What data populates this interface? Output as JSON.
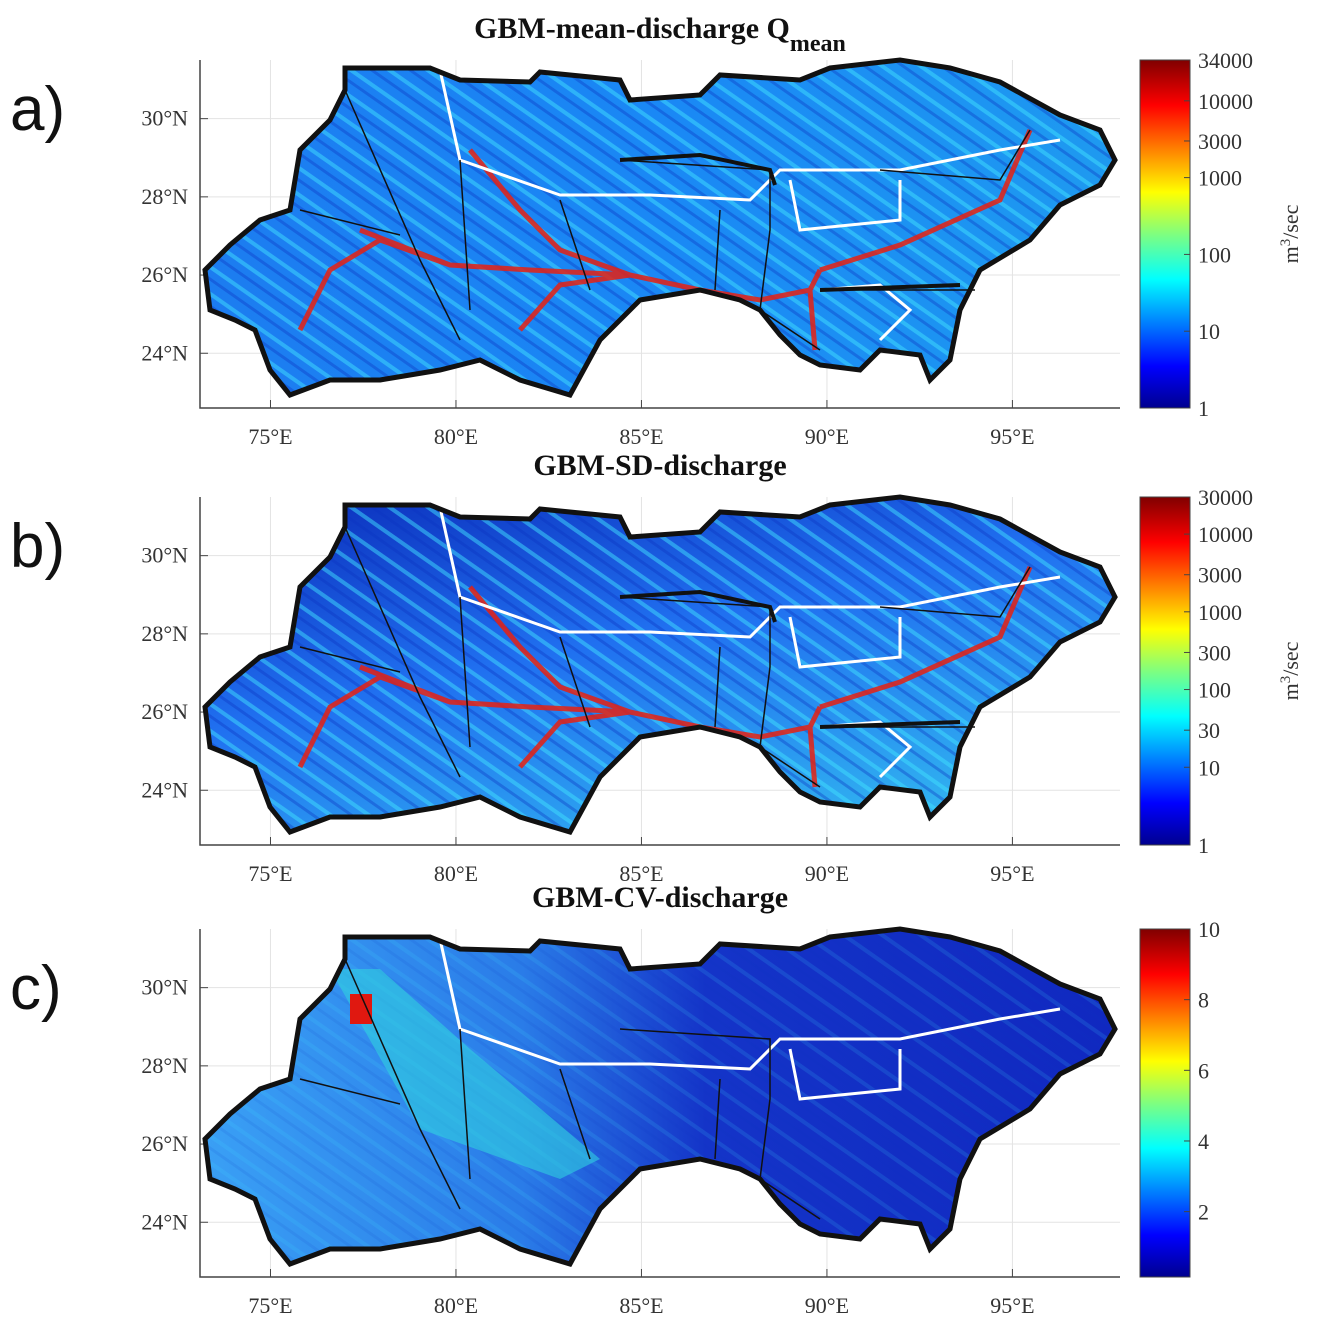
{
  "map": {
    "xlim": [
      73.1,
      97.9
    ],
    "ylim": [
      22.6,
      31.5
    ],
    "lon_ticks": [
      {
        "value": 75,
        "label": "75°E"
      },
      {
        "value": 80,
        "label": "80°E"
      },
      {
        "value": 85,
        "label": "85°E"
      },
      {
        "value": 90,
        "label": "90°E"
      },
      {
        "value": 95,
        "label": "95°E"
      }
    ],
    "lat_ticks": [
      {
        "value": 24,
        "label": "24°N"
      },
      {
        "value": 26,
        "label": "26°N"
      },
      {
        "value": 28,
        "label": "28°N"
      },
      {
        "value": 30,
        "label": "30°N"
      }
    ],
    "panels": [
      {
        "label": "a)",
        "title": "GBM-mean-discharge Q",
        "title_sub": "mean",
        "colorbar": {
          "scale": "log",
          "lim": [
            1,
            34000
          ],
          "ticks": [
            1,
            10,
            100,
            1000,
            3000,
            10000,
            34000
          ]
        },
        "unit": {
          "base": "m",
          "sup": "3",
          "rest": "/sec"
        }
      },
      {
        "label": "b)",
        "title": "GBM-SD-discharge",
        "colorbar": {
          "scale": "log",
          "lim": [
            1,
            30000
          ],
          "ticks": [
            1,
            10,
            30,
            100,
            300,
            1000,
            3000,
            10000,
            30000
          ]
        },
        "unit": {
          "base": "m",
          "sup": "3",
          "rest": "/sec"
        }
      },
      {
        "label": "c)",
        "title": "GBM-CV-discharge",
        "colorbar": {
          "scale": "linear",
          "lim": [
            0.15,
            10
          ],
          "ticks": [
            2,
            4,
            6,
            8,
            10
          ]
        }
      }
    ]
  }
}
